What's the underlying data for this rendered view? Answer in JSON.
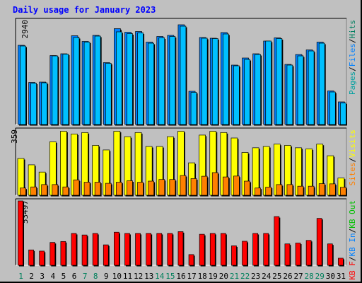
{
  "title": "Daily usage for January 2023",
  "colors": {
    "background": "#c0c0c0",
    "title": "#0000ff",
    "hits": "#00c0ff",
    "files": "#0080ff",
    "sites": "#ff8000",
    "visits": "#ffff00",
    "kbytes": "#ff0000",
    "day_weekday": "#000000",
    "day_weekend": "#00805c"
  },
  "chart_data": [
    {
      "type": "bar",
      "panel": "hits-files",
      "ymax_label": "2940",
      "legend": [
        "Pages",
        "Files",
        "Hits"
      ],
      "ymax": 2940,
      "categories": [
        "1",
        "2",
        "3",
        "4",
        "5",
        "6",
        "7",
        "8",
        "9",
        "10",
        "11",
        "12",
        "13",
        "14",
        "15",
        "16",
        "17",
        "18",
        "19",
        "20",
        "21",
        "22",
        "23",
        "24",
        "25",
        "26",
        "27",
        "28",
        "29",
        "30",
        "31"
      ],
      "series": [
        {
          "name": "Hits",
          "values": [
            2240,
            1190,
            1200,
            1950,
            2000,
            2510,
            2350,
            2520,
            1750,
            2710,
            2610,
            2630,
            2330,
            2490,
            2520,
            2820,
            940,
            2460,
            2440,
            2600,
            1680,
            1880,
            2000,
            2360,
            2450,
            1700,
            1980,
            2110,
            2330,
            950,
            640
          ]
        },
        {
          "name": "Files",
          "values": [
            2220,
            1170,
            1180,
            1940,
            1990,
            2460,
            2330,
            2500,
            1730,
            2620,
            2570,
            2590,
            2300,
            2450,
            2490,
            2780,
            910,
            2440,
            2430,
            2560,
            1660,
            1840,
            1980,
            2360,
            2430,
            1680,
            1940,
            2080,
            2300,
            920,
            610
          ]
        },
        {
          "name": "Pages",
          "values": [
            0,
            0,
            0,
            0,
            0,
            0,
            0,
            0,
            0,
            0,
            0,
            0,
            0,
            0,
            0,
            0,
            0,
            0,
            0,
            0,
            0,
            0,
            0,
            0,
            0,
            0,
            0,
            0,
            0,
            0,
            0
          ]
        }
      ]
    },
    {
      "type": "bar",
      "panel": "visits-sites",
      "ymax_label": "359",
      "legend": [
        "Sites",
        "Visits"
      ],
      "ymax": 359,
      "categories": [
        "1",
        "2",
        "3",
        "4",
        "5",
        "6",
        "7",
        "8",
        "9",
        "10",
        "11",
        "12",
        "13",
        "14",
        "15",
        "16",
        "17",
        "18",
        "19",
        "20",
        "21",
        "22",
        "23",
        "24",
        "25",
        "26",
        "27",
        "28",
        "29",
        "30",
        "31"
      ],
      "series": [
        {
          "name": "Visits",
          "values": [
            203,
            168,
            128,
            295,
            353,
            338,
            346,
            275,
            250,
            353,
            323,
            346,
            269,
            269,
            323,
            353,
            179,
            332,
            353,
            346,
            316,
            236,
            262,
            269,
            282,
            275,
            262,
            256,
            282,
            218,
            95
          ]
        },
        {
          "name": "Sites",
          "values": [
            40,
            46,
            59,
            59,
            46,
            85,
            72,
            72,
            66,
            72,
            80,
            72,
            78,
            87,
            87,
            109,
            92,
            105,
            125,
            101,
            106,
            78,
            40,
            45,
            59,
            59,
            50,
            50,
            64,
            63,
            44
          ]
        }
      ]
    },
    {
      "type": "bar",
      "panel": "kbytes",
      "ymax_label": "53497",
      "legend": [
        "KB F",
        "KB In",
        "KB Out"
      ],
      "ymax": 53497,
      "categories": [
        "1",
        "2",
        "3",
        "4",
        "5",
        "6",
        "7",
        "8",
        "9",
        "10",
        "11",
        "12",
        "13",
        "14",
        "15",
        "16",
        "17",
        "18",
        "19",
        "20",
        "21",
        "22",
        "23",
        "24",
        "25",
        "26",
        "27",
        "28",
        "29",
        "30",
        "31"
      ],
      "series": [
        {
          "name": "KB F",
          "values": [
            53497,
            12800,
            11800,
            19000,
            19800,
            26500,
            25200,
            26500,
            17000,
            27500,
            26500,
            26500,
            26500,
            26500,
            26500,
            28000,
            8900,
            25800,
            26500,
            26500,
            16200,
            20000,
            26500,
            26500,
            40500,
            17800,
            18500,
            20700,
            39000,
            17800,
            5900
          ]
        },
        {
          "name": "KB In",
          "values": [
            0,
            0,
            0,
            0,
            0,
            0,
            0,
            0,
            0,
            0,
            0,
            0,
            0,
            0,
            0,
            0,
            0,
            0,
            0,
            0,
            0,
            0,
            0,
            0,
            0,
            0,
            0,
            0,
            0,
            0,
            0
          ]
        },
        {
          "name": "KB Out",
          "values": [
            0,
            0,
            0,
            0,
            0,
            0,
            0,
            0,
            0,
            0,
            0,
            0,
            0,
            0,
            0,
            0,
            0,
            0,
            0,
            0,
            0,
            0,
            0,
            0,
            0,
            0,
            0,
            0,
            0,
            0,
            0
          ]
        }
      ]
    }
  ],
  "weekend_days": [
    1,
    7,
    8,
    14,
    15,
    21,
    22,
    28,
    29
  ]
}
